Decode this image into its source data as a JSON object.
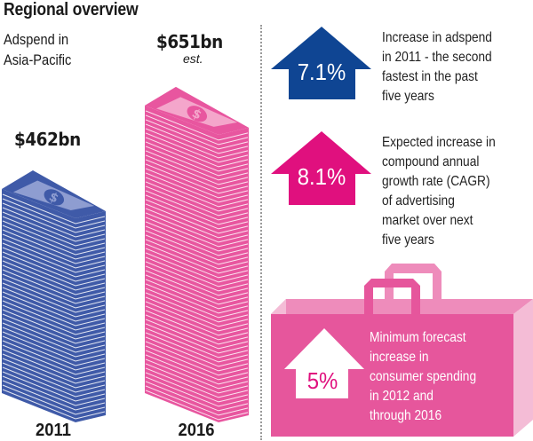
{
  "title": "Regional overview",
  "subtitle_lines": [
    "Adspend in",
    "Asia-Pacific"
  ],
  "colors": {
    "blue_stack": "#3f5aa8",
    "blue_note": "#8e9dd1",
    "pink_stack": "#e8569f",
    "pink_note": "#f4a6cb",
    "blue_arrow": "#0f4593",
    "magenta_arrow": "#e0107e",
    "bag_front": "#e6569c",
    "bag_back": "#ee8cbb",
    "bag_side": "#f4bcd6",
    "text": "#1a1a1a"
  },
  "stacks": [
    {
      "year": "2011",
      "amount": "$462bn",
      "value_bn": 462,
      "note": "",
      "icon": "dollar-bill-stack"
    },
    {
      "year": "2016",
      "amount": "$651bn",
      "value_bn": 651,
      "note": "est.",
      "icon": "dollar-bill-stack"
    }
  ],
  "facts": [
    {
      "value": "7.1%",
      "icon": "up-arrow",
      "lines": [
        "Increase in adspend",
        "in 2011 - the second",
        "fastest in the past",
        "five years"
      ]
    },
    {
      "value": "8.1%",
      "icon": "up-arrow",
      "lines": [
        "Expected increase in",
        "compound annual",
        "growth rate (CAGR)",
        "of advertising",
        "market over next",
        "five years"
      ]
    },
    {
      "value": "5%",
      "icon": "up-arrow",
      "lines": [
        "Minimum forecast",
        "increase in",
        "consumer spending",
        "in 2012 and",
        "through 2016"
      ]
    }
  ]
}
